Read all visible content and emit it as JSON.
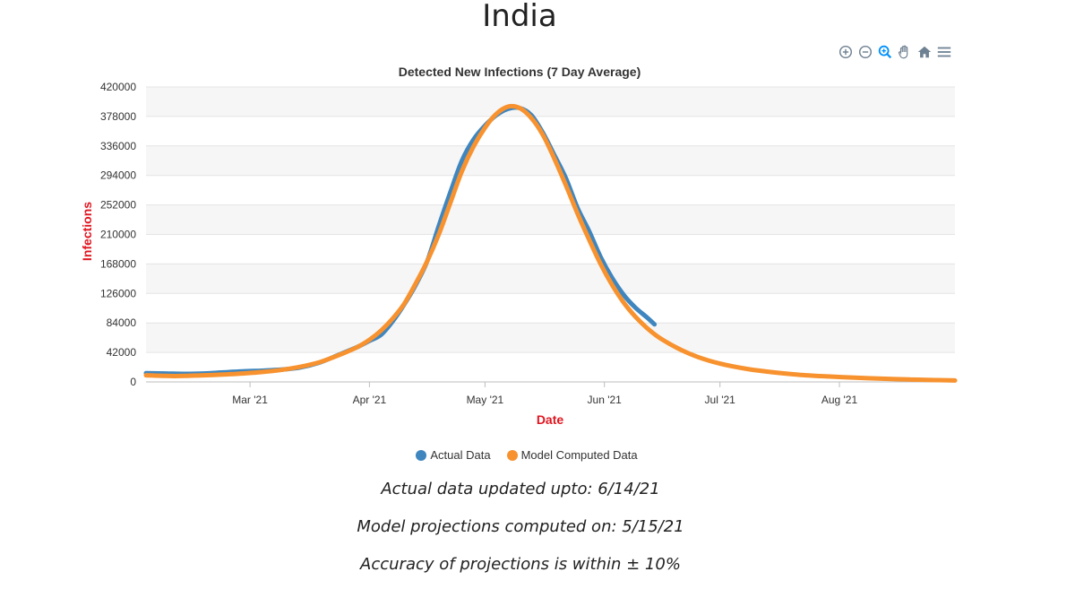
{
  "page": {
    "title": "India"
  },
  "toolbar": {
    "icons": [
      "zoom-in-icon",
      "zoom-out-icon",
      "selection-zoom-icon",
      "pan-hand-icon",
      "reset-home-icon",
      "menu-icon"
    ]
  },
  "colors": {
    "actual": "#3f86bf",
    "model": "#f7922f",
    "axis_title": "#e0151f",
    "grid_band": "#f6f6f6"
  },
  "chart_data": {
    "type": "line",
    "title": "Detected New Infections (7 Day Average)",
    "xlabel": "Date",
    "ylabel": "Infections",
    "ylim": [
      0,
      420000
    ],
    "y_ticks": [
      "0",
      "42000",
      "84000",
      "126000",
      "168000",
      "210000",
      "252000",
      "294000",
      "336000",
      "378000",
      "420000"
    ],
    "xlim": [
      "2021-02-02",
      "2021-08-31"
    ],
    "x_ticks": [
      {
        "date": "2021-03-01",
        "label": "Mar '21"
      },
      {
        "date": "2021-04-01",
        "label": "Apr '21"
      },
      {
        "date": "2021-05-01",
        "label": "May '21"
      },
      {
        "date": "2021-06-01",
        "label": "Jun '21"
      },
      {
        "date": "2021-07-01",
        "label": "Jul '21"
      },
      {
        "date": "2021-08-01",
        "label": "Aug '21"
      }
    ],
    "grid": true,
    "legend": "bottom",
    "series": [
      {
        "name": "Actual Data",
        "color": "#3f86bf",
        "points": [
          [
            "2021-02-02",
            12500
          ],
          [
            "2021-02-07",
            12000
          ],
          [
            "2021-02-12",
            11500
          ],
          [
            "2021-02-17",
            12000
          ],
          [
            "2021-02-22",
            13500
          ],
          [
            "2021-02-27",
            15000
          ],
          [
            "2021-03-04",
            16000
          ],
          [
            "2021-03-09",
            17500
          ],
          [
            "2021-03-14",
            20500
          ],
          [
            "2021-03-19",
            27500
          ],
          [
            "2021-03-24",
            38500
          ],
          [
            "2021-03-29",
            50000
          ],
          [
            "2021-04-01",
            58500
          ],
          [
            "2021-04-04",
            67000
          ],
          [
            "2021-04-07",
            86000
          ],
          [
            "2021-04-10",
            110000
          ],
          [
            "2021-04-13",
            138000
          ],
          [
            "2021-04-16",
            172000
          ],
          [
            "2021-04-19",
            222000
          ],
          [
            "2021-04-22",
            270000
          ],
          [
            "2021-04-25",
            315000
          ],
          [
            "2021-04-28",
            345000
          ],
          [
            "2021-05-01",
            365000
          ],
          [
            "2021-05-04",
            380000
          ],
          [
            "2021-05-07",
            389000
          ],
          [
            "2021-05-10",
            390000
          ],
          [
            "2021-05-13",
            380000
          ],
          [
            "2021-05-16",
            355000
          ],
          [
            "2021-05-19",
            323000
          ],
          [
            "2021-05-22",
            290000
          ],
          [
            "2021-05-25",
            248000
          ],
          [
            "2021-05-28",
            215000
          ],
          [
            "2021-05-31",
            178000
          ],
          [
            "2021-06-03",
            148000
          ],
          [
            "2021-06-06",
            124000
          ],
          [
            "2021-06-09",
            106000
          ],
          [
            "2021-06-12",
            92000
          ],
          [
            "2021-06-14",
            82000
          ]
        ]
      },
      {
        "name": "Model Computed Data",
        "color": "#f7922f",
        "points": [
          [
            "2021-02-02",
            9500
          ],
          [
            "2021-02-07",
            8500
          ],
          [
            "2021-02-12",
            8500
          ],
          [
            "2021-02-17",
            9500
          ],
          [
            "2021-02-22",
            10500
          ],
          [
            "2021-02-27",
            12000
          ],
          [
            "2021-03-04",
            14000
          ],
          [
            "2021-03-09",
            17000
          ],
          [
            "2021-03-14",
            21500
          ],
          [
            "2021-03-19",
            28000
          ],
          [
            "2021-03-24",
            38000
          ],
          [
            "2021-03-29",
            50000
          ],
          [
            "2021-04-01",
            60000
          ],
          [
            "2021-04-04",
            73000
          ],
          [
            "2021-04-07",
            90000
          ],
          [
            "2021-04-10",
            111000
          ],
          [
            "2021-04-13",
            140000
          ],
          [
            "2021-04-16",
            172000
          ],
          [
            "2021-04-19",
            210000
          ],
          [
            "2021-04-22",
            255000
          ],
          [
            "2021-04-25",
            300000
          ],
          [
            "2021-04-28",
            335000
          ],
          [
            "2021-05-01",
            362000
          ],
          [
            "2021-05-04",
            382000
          ],
          [
            "2021-05-07",
            392000
          ],
          [
            "2021-05-10",
            390000
          ],
          [
            "2021-05-13",
            376000
          ],
          [
            "2021-05-16",
            352000
          ],
          [
            "2021-05-19",
            318000
          ],
          [
            "2021-05-22",
            280000
          ],
          [
            "2021-05-25",
            240000
          ],
          [
            "2021-05-28",
            203000
          ],
          [
            "2021-05-31",
            168000
          ],
          [
            "2021-06-03",
            138000
          ],
          [
            "2021-06-06",
            113000
          ],
          [
            "2021-06-09",
            93000
          ],
          [
            "2021-06-12",
            77000
          ],
          [
            "2021-06-15",
            64000
          ],
          [
            "2021-06-20",
            48000
          ],
          [
            "2021-06-25",
            36000
          ],
          [
            "2021-07-01",
            26000
          ],
          [
            "2021-07-08",
            18500
          ],
          [
            "2021-07-15",
            13500
          ],
          [
            "2021-07-22",
            10000
          ],
          [
            "2021-07-29",
            7800
          ],
          [
            "2021-08-05",
            6000
          ],
          [
            "2021-08-12",
            4600
          ],
          [
            "2021-08-19",
            3500
          ],
          [
            "2021-08-26",
            2600
          ],
          [
            "2021-08-31",
            2100
          ]
        ]
      }
    ]
  },
  "notes": {
    "updated": "Actual data updated upto: 6/14/21",
    "computed": "Model projections computed on: 5/15/21",
    "accuracy": "Accuracy of projections is within ± 10%"
  }
}
